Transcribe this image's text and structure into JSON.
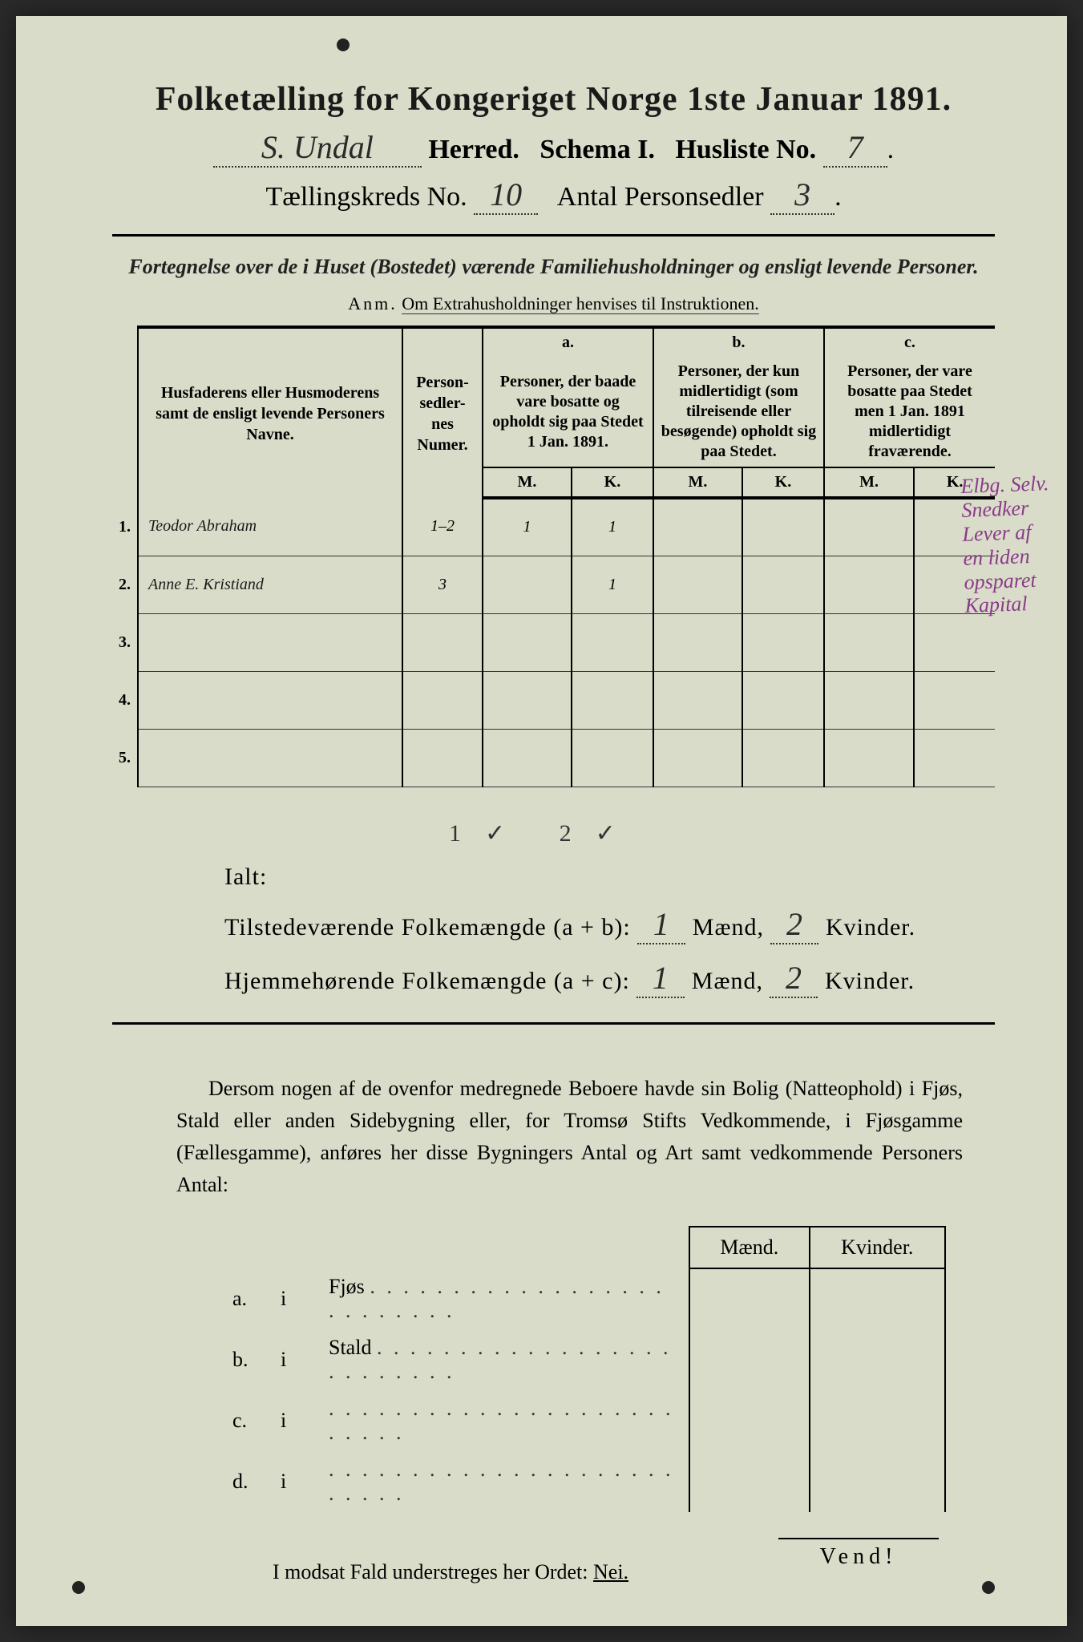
{
  "title": "Folketælling for Kongeriget Norge 1ste Januar 1891.",
  "header": {
    "herred_value": "S. Undal",
    "herred_label": "Herred.",
    "schema_label": "Schema I.",
    "husliste_label": "Husliste No.",
    "husliste_value": "7",
    "kreds_label": "Tællingskreds No.",
    "kreds_value": "10",
    "antal_label": "Antal Personsedler",
    "antal_value": "3"
  },
  "subtitle1": "Fortegnelse over de i Huset (Bostedet) værende Familiehusholdninger og ensligt levende Personer.",
  "subtitle2": "Anm. Om Extrahusholdninger henvises til Instruktionen.",
  "table": {
    "col_name": "Husfaderens eller Husmoderens samt de ensligt levende Personers Navne.",
    "col_numer": "Person-sedler-nes Numer.",
    "col_a_label": "a.",
    "col_a": "Personer, der baade vare bosatte og opholdt sig paa Stedet 1 Jan. 1891.",
    "col_b_label": "b.",
    "col_b": "Personer, der kun midlertidigt (som tilreisende eller besøgende) opholdt sig paa Stedet.",
    "col_c_label": "c.",
    "col_c": "Personer, der vare bosatte paa Stedet men 1 Jan. 1891 midlertidigt fraværende.",
    "M": "M.",
    "K": "K.",
    "rows": [
      {
        "n": "1.",
        "name": "Teodor Abraham",
        "numer": "1–2",
        "aM": "1",
        "aK": "1",
        "bM": "",
        "bK": "",
        "cM": "",
        "cK": ""
      },
      {
        "n": "2.",
        "name": "Anne E. Kristiand",
        "numer": "3",
        "aM": "",
        "aK": "1",
        "bM": "",
        "bK": "",
        "cM": "",
        "cK": ""
      },
      {
        "n": "3.",
        "name": "",
        "numer": "",
        "aM": "",
        "aK": "",
        "bM": "",
        "bK": "",
        "cM": "",
        "cK": ""
      },
      {
        "n": "4.",
        "name": "",
        "numer": "",
        "aM": "",
        "aK": "",
        "bM": "",
        "bK": "",
        "cM": "",
        "cK": ""
      },
      {
        "n": "5.",
        "name": "",
        "numer": "",
        "aM": "",
        "aK": "",
        "bM": "",
        "bK": "",
        "cM": "",
        "cK": ""
      }
    ]
  },
  "margin_note": "Elbg. Selv. Snedker Lever af en liden opsparet Kapital",
  "ialt": {
    "check": "1✓  2✓",
    "label": "Ialt:",
    "line1_a": "Tilstedeværende Folkemængde (a + b):",
    "line1_m": "1",
    "line1_mid": "Mænd,",
    "line1_k": "2",
    "line1_end": "Kvinder.",
    "line2_a": "Hjemmehørende Folkemængde (a + c):",
    "line2_m": "1",
    "line2_k": "2"
  },
  "paragraph": "Dersom nogen af de ovenfor medregnede Beboere havde sin Bolig (Natteophold) i Fjøs, Stald eller anden Sidebygning eller, for Tromsø Stifts Vedkommende, i Fjøsgamme (Fællesgamme), anføres her disse Bygningers Antal og Art samt vedkommende Personers Antal:",
  "small_table": {
    "h1": "Mænd.",
    "h2": "Kvinder.",
    "rows": [
      {
        "l": "a.",
        "i": "i",
        "t": "Fjøs"
      },
      {
        "l": "b.",
        "i": "i",
        "t": "Stald"
      },
      {
        "l": "c.",
        "i": "i",
        "t": ""
      },
      {
        "l": "d.",
        "i": "i",
        "t": ""
      }
    ]
  },
  "modsat": "I modsat Fald understreges her Ordet: ",
  "nei": "Nei.",
  "vend": "Vend!",
  "colors": {
    "paper": "#d9dcc8",
    "ink": "#1a1a1a",
    "purple": "#8a3a8a"
  }
}
